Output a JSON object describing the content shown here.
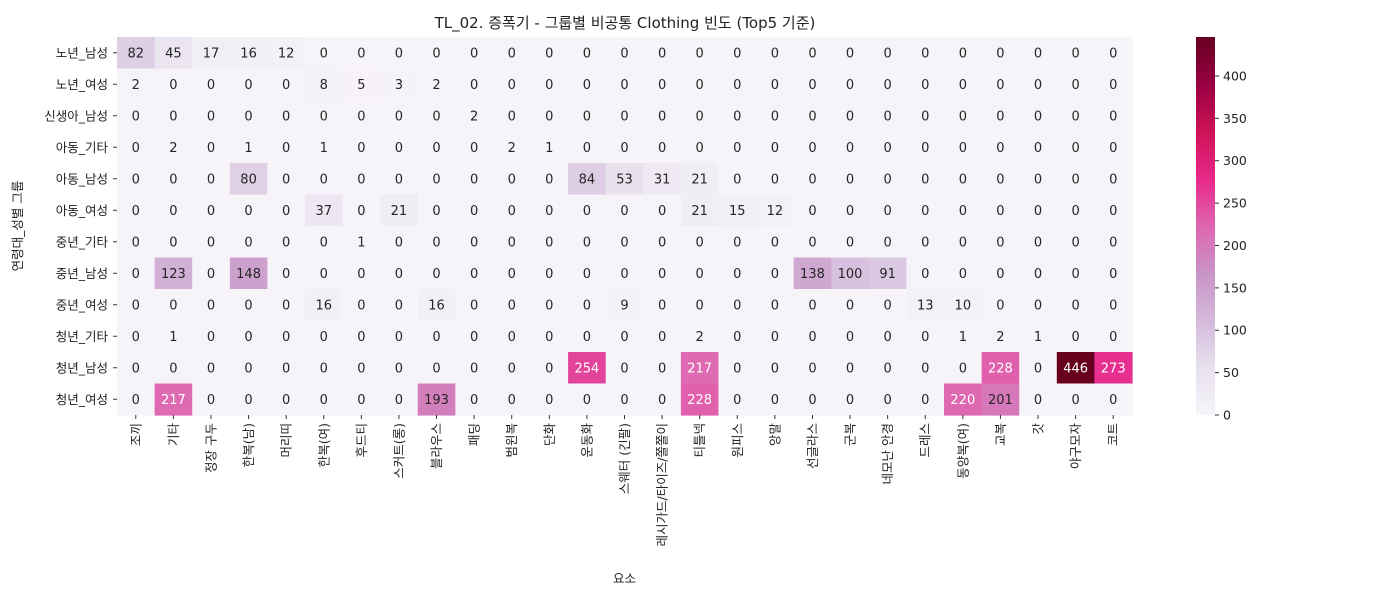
{
  "chart_data": {
    "type": "heatmap",
    "title": "TL_02. 증폭기 - 그룹별 비공통 Clothing 빈도 (Top5 기준)",
    "xlabel": "요소",
    "ylabel": "연령대_성별 그룹",
    "x_categories": [
      "조끼",
      "기타",
      "정장 구두",
      "한복(남)",
      "머리띠",
      "한복(여)",
      "후드티",
      "스커트(롱)",
      "블라우스",
      "패딩",
      "범윈복",
      "단화",
      "운동화",
      "스웨터 (긴팔)",
      "레시가드/타이즈/쫄쫄이",
      "티틀넥",
      "원피스",
      "앙말",
      "선글라스",
      "군복",
      "네모난 안경",
      "드레스",
      "동양복(여)",
      "교복",
      "갓",
      "야구모자",
      "코트"
    ],
    "y_categories": [
      "노년_남성",
      "노년_여성",
      "신생아_남성",
      "아동_기타",
      "아동_남성",
      "아동_여성",
      "중년_기타",
      "중년_남성",
      "중년_여성",
      "청년_기타",
      "청년_남성",
      "청년_여성"
    ],
    "values": [
      [
        82,
        45,
        17,
        16,
        12,
        0,
        0,
        0,
        0,
        0,
        0,
        0,
        0,
        0,
        0,
        0,
        0,
        0,
        0,
        0,
        0,
        0,
        0,
        0,
        0,
        0,
        0
      ],
      [
        2,
        0,
        0,
        0,
        0,
        8,
        5,
        3,
        2,
        0,
        0,
        0,
        0,
        0,
        0,
        0,
        0,
        0,
        0,
        0,
        0,
        0,
        0,
        0,
        0,
        0,
        0
      ],
      [
        0,
        0,
        0,
        0,
        0,
        0,
        0,
        0,
        0,
        2,
        0,
        0,
        0,
        0,
        0,
        0,
        0,
        0,
        0,
        0,
        0,
        0,
        0,
        0,
        0,
        0,
        0
      ],
      [
        0,
        2,
        0,
        1,
        0,
        1,
        0,
        0,
        0,
        0,
        2,
        1,
        0,
        0,
        0,
        0,
        0,
        0,
        0,
        0,
        0,
        0,
        0,
        0,
        0,
        0,
        0
      ],
      [
        0,
        0,
        0,
        80,
        0,
        0,
        0,
        0,
        0,
        0,
        0,
        0,
        84,
        53,
        31,
        21,
        0,
        0,
        0,
        0,
        0,
        0,
        0,
        0,
        0,
        0,
        0
      ],
      [
        0,
        0,
        0,
        0,
        0,
        37,
        0,
        21,
        0,
        0,
        0,
        0,
        0,
        0,
        0,
        21,
        15,
        12,
        0,
        0,
        0,
        0,
        0,
        0,
        0,
        0,
        0
      ],
      [
        0,
        0,
        0,
        0,
        0,
        0,
        1,
        0,
        0,
        0,
        0,
        0,
        0,
        0,
        0,
        0,
        0,
        0,
        0,
        0,
        0,
        0,
        0,
        0,
        0,
        0,
        0
      ],
      [
        0,
        123,
        0,
        148,
        0,
        0,
        0,
        0,
        0,
        0,
        0,
        0,
        0,
        0,
        0,
        0,
        0,
        0,
        138,
        100,
        91,
        0,
        0,
        0,
        0,
        0,
        0
      ],
      [
        0,
        0,
        0,
        0,
        0,
        16,
        0,
        0,
        16,
        0,
        0,
        0,
        0,
        9,
        0,
        0,
        0,
        0,
        0,
        0,
        0,
        13,
        10,
        0,
        0,
        0,
        0
      ],
      [
        0,
        1,
        0,
        0,
        0,
        0,
        0,
        0,
        0,
        0,
        0,
        0,
        0,
        0,
        0,
        2,
        0,
        0,
        0,
        0,
        0,
        0,
        1,
        2,
        1,
        0,
        0
      ],
      [
        0,
        0,
        0,
        0,
        0,
        0,
        0,
        0,
        0,
        0,
        0,
        0,
        254,
        0,
        0,
        217,
        0,
        0,
        0,
        0,
        0,
        0,
        0,
        228,
        0,
        446,
        273
      ],
      [
        0,
        217,
        0,
        0,
        0,
        0,
        0,
        0,
        193,
        0,
        0,
        0,
        0,
        0,
        0,
        228,
        0,
        0,
        0,
        0,
        0,
        0,
        220,
        201,
        0,
        0,
        0
      ]
    ],
    "colorbar": {
      "range": [
        0,
        446
      ],
      "ticks": [
        0,
        50,
        100,
        150,
        200,
        250,
        300,
        350,
        400
      ]
    },
    "colors": {
      "stops": [
        "#f7f4f9",
        "#e7e1ef",
        "#d4b9da",
        "#c994c7",
        "#df65b0",
        "#e7298a",
        "#ce1256",
        "#980043",
        "#67001f"
      ]
    }
  }
}
